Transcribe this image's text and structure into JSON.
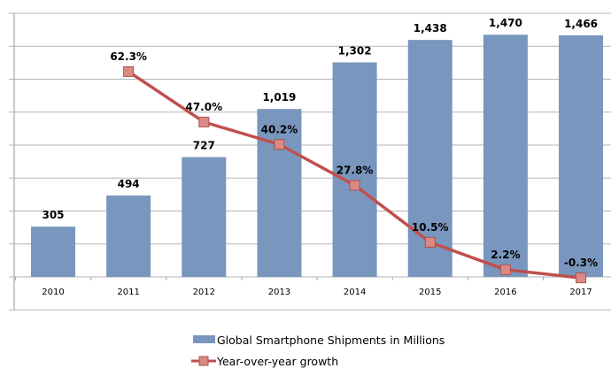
{
  "chart_data": {
    "type": "bar",
    "categories": [
      "2010",
      "2011",
      "2012",
      "2013",
      "2014",
      "2015",
      "2016",
      "2017"
    ],
    "series": [
      {
        "name": "Global Smartphone Shipments in Millions",
        "type": "bar",
        "axis": "left",
        "values": [
          305,
          494,
          727,
          1019,
          1302,
          1438,
          1470,
          1466
        ],
        "labels": [
          "305",
          "494",
          "727",
          "1,019",
          "1,302",
          "1,438",
          "1,470",
          "1,466"
        ],
        "color": "#7896be"
      },
      {
        "name": "Year-over-year growth",
        "type": "line",
        "axis": "right",
        "values": [
          null,
          62.3,
          47.0,
          40.2,
          27.8,
          10.5,
          2.2,
          -0.3
        ],
        "labels": [
          null,
          "62.3%",
          "47.0%",
          "40.2%",
          "27.8%",
          "10.5%",
          "2.2%",
          "-0.3%"
        ],
        "color": "#c0504d",
        "marker_color": "#d98a84"
      }
    ],
    "ylim_left": [
      0,
      1600
    ],
    "ylim_right": [
      0,
      80
    ],
    "grid": true,
    "legend": "bottom-center",
    "title": "",
    "xlabel": "",
    "ylabel": ""
  }
}
